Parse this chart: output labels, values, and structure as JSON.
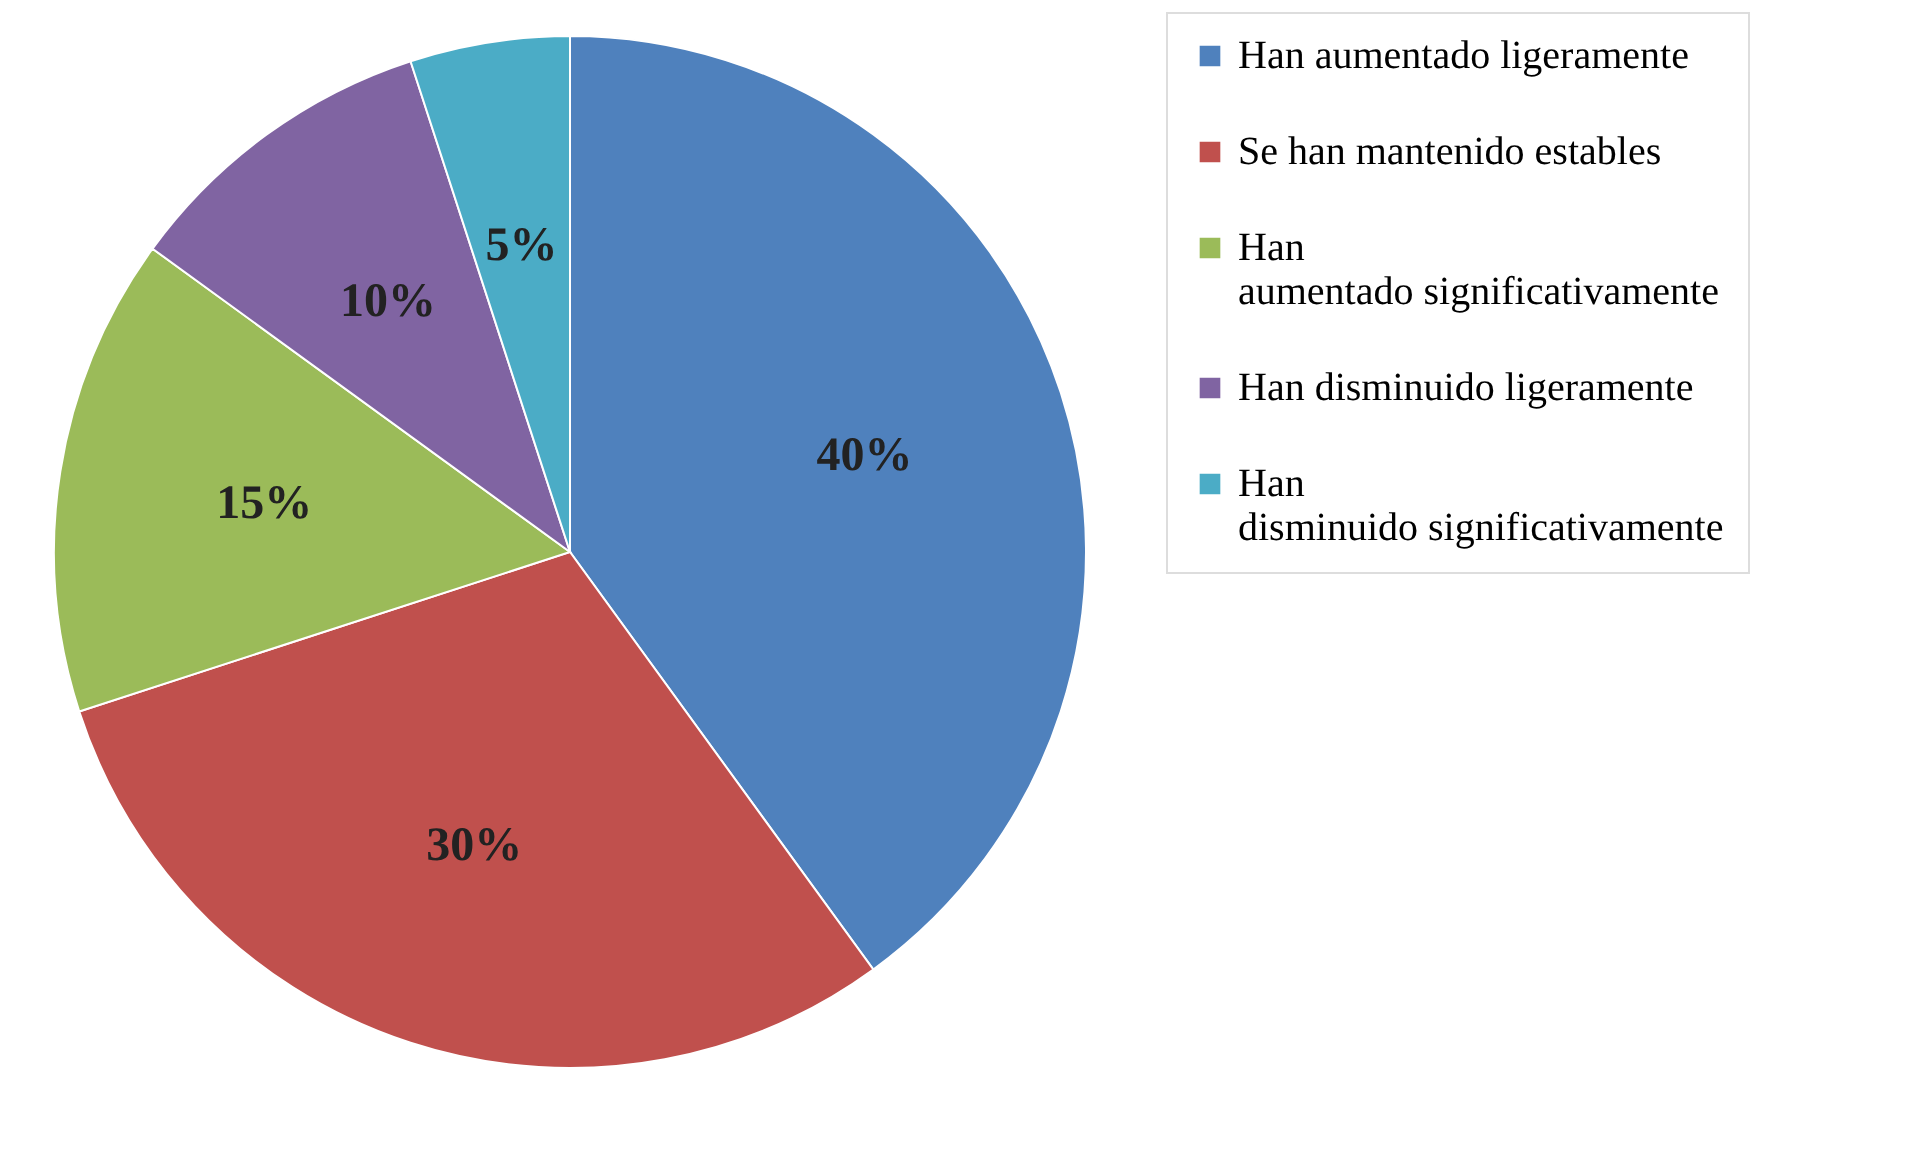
{
  "chart_data": {
    "type": "pie",
    "categories": [
      "Han aumentado ligeramente",
      "Se han mantenido estables",
      "Han aumentado significativamente",
      "Han disminuido ligeramente",
      "Han disminuido significativamente"
    ],
    "values": [
      40,
      30,
      15,
      10,
      5
    ],
    "colors": [
      "#4f81bd",
      "#c0504d",
      "#9bbb59",
      "#8064a2",
      "#4bacc6"
    ],
    "value_labels": [
      "40%",
      "30%",
      "15%",
      "10%",
      "5%"
    ],
    "legend": "right"
  }
}
